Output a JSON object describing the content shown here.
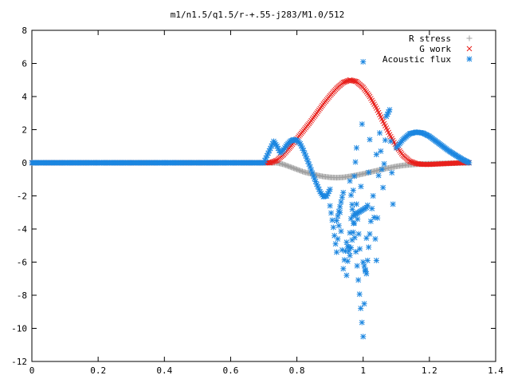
{
  "chart_data": {
    "type": "scatter",
    "title": "m1/n1.5/q1.5/r-+.55-j283/M1.0/512",
    "xlabel": "",
    "ylabel": "",
    "xlim": [
      0,
      1.4
    ],
    "ylim": [
      -12,
      8
    ],
    "x_ticks": [
      "0",
      "0.2",
      "0.4",
      "0.6",
      "0.8",
      "1",
      "1.2",
      "1.4"
    ],
    "y_ticks": [
      "-12",
      "-10",
      "-8",
      "-6",
      "-4",
      "-2",
      "0",
      "2",
      "4",
      "6",
      "8"
    ],
    "grid": false,
    "legend_position": "top-right",
    "series": [
      {
        "name": "R stress",
        "marker": "plus",
        "color": "#a0a0a0",
        "points": [
          [
            0.0,
            0.0
          ],
          [
            0.1,
            0.0
          ],
          [
            0.2,
            0.0
          ],
          [
            0.3,
            0.0
          ],
          [
            0.4,
            0.0
          ],
          [
            0.5,
            0.0
          ],
          [
            0.6,
            0.0
          ],
          [
            0.7,
            0.0
          ],
          [
            0.74,
            0.0
          ],
          [
            0.76,
            -0.1
          ],
          [
            0.78,
            -0.25
          ],
          [
            0.8,
            -0.4
          ],
          [
            0.82,
            -0.55
          ],
          [
            0.84,
            -0.65
          ],
          [
            0.86,
            -0.75
          ],
          [
            0.88,
            -0.83
          ],
          [
            0.9,
            -0.88
          ],
          [
            0.92,
            -0.9
          ],
          [
            0.94,
            -0.88
          ],
          [
            0.96,
            -0.82
          ],
          [
            0.98,
            -0.75
          ],
          [
            1.0,
            -0.67
          ],
          [
            1.02,
            -0.57
          ],
          [
            1.04,
            -0.48
          ],
          [
            1.06,
            -0.38
          ],
          [
            1.08,
            -0.3
          ],
          [
            1.1,
            -0.22
          ],
          [
            1.12,
            -0.16
          ],
          [
            1.14,
            -0.12
          ],
          [
            1.16,
            -0.09
          ],
          [
            1.18,
            -0.07
          ],
          [
            1.2,
            -0.06
          ],
          [
            1.22,
            -0.05
          ],
          [
            1.24,
            -0.04
          ],
          [
            1.26,
            -0.03
          ],
          [
            1.28,
            -0.02
          ],
          [
            1.3,
            -0.01
          ],
          [
            1.32,
            0.0
          ]
        ]
      },
      {
        "name": "G work",
        "marker": "cross",
        "color": "#e8201c",
        "points": [
          [
            0.0,
            0.0
          ],
          [
            0.2,
            0.0
          ],
          [
            0.4,
            0.0
          ],
          [
            0.6,
            0.0
          ],
          [
            0.72,
            0.0
          ],
          [
            0.74,
            0.15
          ],
          [
            0.76,
            0.5
          ],
          [
            0.78,
            0.95
          ],
          [
            0.8,
            1.45
          ],
          [
            0.82,
            1.95
          ],
          [
            0.84,
            2.45
          ],
          [
            0.86,
            3.0
          ],
          [
            0.88,
            3.55
          ],
          [
            0.9,
            4.05
          ],
          [
            0.92,
            4.5
          ],
          [
            0.94,
            4.85
          ],
          [
            0.96,
            5.0
          ],
          [
            0.98,
            4.9
          ],
          [
            1.0,
            4.55
          ],
          [
            1.02,
            4.0
          ],
          [
            1.04,
            3.3
          ],
          [
            1.06,
            2.5
          ],
          [
            1.08,
            1.7
          ],
          [
            1.1,
            1.0
          ],
          [
            1.12,
            0.45
          ],
          [
            1.14,
            0.1
          ],
          [
            1.16,
            -0.05
          ],
          [
            1.18,
            -0.1
          ],
          [
            1.2,
            -0.1
          ],
          [
            1.22,
            -0.08
          ],
          [
            1.24,
            -0.06
          ],
          [
            1.26,
            -0.04
          ],
          [
            1.28,
            -0.02
          ],
          [
            1.3,
            0.0
          ],
          [
            1.32,
            0.0
          ]
        ]
      },
      {
        "name": "Acoustic flux",
        "marker": "star",
        "color": "#1b86e0",
        "points": [
          [
            0.0,
            0.0
          ],
          [
            0.1,
            0.0
          ],
          [
            0.2,
            0.0
          ],
          [
            0.3,
            0.0
          ],
          [
            0.4,
            0.0
          ],
          [
            0.5,
            0.0
          ],
          [
            0.6,
            0.0
          ],
          [
            0.7,
            0.0
          ],
          [
            0.73,
            1.3
          ],
          [
            0.74,
            1.0
          ],
          [
            0.75,
            0.6
          ],
          [
            0.76,
            0.8
          ],
          [
            0.77,
            1.1
          ],
          [
            0.78,
            1.3
          ],
          [
            0.79,
            1.4
          ],
          [
            0.8,
            1.35
          ],
          [
            0.81,
            1.15
          ],
          [
            0.82,
            0.75
          ],
          [
            0.83,
            0.25
          ],
          [
            0.84,
            -0.25
          ],
          [
            0.85,
            -0.8
          ],
          [
            0.86,
            -1.3
          ],
          [
            0.87,
            -1.75
          ],
          [
            0.88,
            -2.05
          ],
          [
            0.89,
            -2.0
          ],
          [
            0.9,
            -1.6
          ],
          [
            0.9,
            -2.6
          ],
          [
            0.91,
            -3.9
          ],
          [
            0.92,
            -5.4
          ],
          [
            0.93,
            -3.0
          ],
          [
            0.94,
            -6.4
          ],
          [
            0.95,
            -4.8
          ],
          [
            0.96,
            -5.6
          ],
          [
            0.97,
            -4.2
          ],
          [
            0.98,
            -2.5
          ],
          [
            0.99,
            -5.2
          ],
          [
            1.0,
            6.1
          ],
          [
            1.0,
            -6.0
          ],
          [
            1.01,
            -6.7
          ],
          [
            1.02,
            -4.3
          ],
          [
            1.03,
            -2.0
          ],
          [
            1.04,
            -5.9
          ],
          [
            1.05,
            1.8
          ],
          [
            1.06,
            -1.5
          ],
          [
            1.07,
            2.8
          ],
          [
            1.08,
            3.2
          ],
          [
            1.09,
            -2.5
          ],
          [
            0.95,
            -6.8
          ],
          [
            0.98,
            0.9
          ],
          [
            0.96,
            -1.1
          ],
          [
            1.0,
            -10.5
          ],
          [
            1.02,
            1.4
          ],
          [
            0.92,
            -3.5
          ],
          [
            0.94,
            -1.8
          ],
          [
            1.04,
            0.5
          ],
          [
            0.97,
            -3.2
          ],
          [
            1.01,
            -2.7
          ],
          [
            1.1,
            0.9
          ],
          [
            1.12,
            1.4
          ],
          [
            1.14,
            1.75
          ],
          [
            1.16,
            1.85
          ],
          [
            1.18,
            1.8
          ],
          [
            1.2,
            1.6
          ],
          [
            1.22,
            1.3
          ],
          [
            1.24,
            1.0
          ],
          [
            1.26,
            0.7
          ],
          [
            1.28,
            0.45
          ],
          [
            1.3,
            0.2
          ],
          [
            1.32,
            0.0
          ]
        ]
      }
    ]
  }
}
